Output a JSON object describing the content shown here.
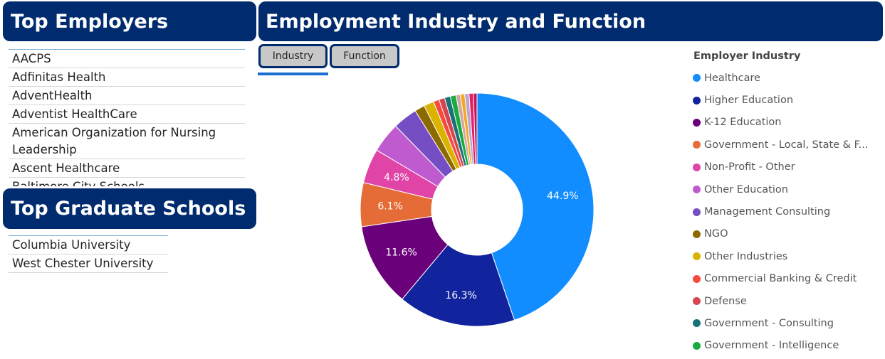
{
  "employers": {
    "title": "Top Employers",
    "items": [
      "AACPS",
      "Adfinitas Health",
      "AdventHealth",
      "Adventist HealthCare",
      "American Organization for Nursing Leadership",
      "Ascent Healthcare",
      "Baltimore City Schools"
    ]
  },
  "grad_schools": {
    "title": "Top Graduate Schools",
    "items": [
      "Columbia University",
      "West Chester University"
    ]
  },
  "industry": {
    "title": "Employment Industry and Function",
    "tabs": [
      {
        "label": "Industry",
        "active": true
      },
      {
        "label": "Function",
        "active": false
      }
    ]
  },
  "chart_data": {
    "type": "pie",
    "donut": true,
    "legend_title": "Employer Industry",
    "legend_position": "right",
    "slices": [
      {
        "label": "Healthcare",
        "value": 44.9,
        "color": "#118dff",
        "show_label": true
      },
      {
        "label": "Higher Education",
        "value": 16.3,
        "color": "#12239e",
        "show_label": true
      },
      {
        "label": "K-12 Education",
        "value": 11.6,
        "color": "#6b007b",
        "show_label": true
      },
      {
        "label": "Government - Local, State & Federal",
        "value": 6.1,
        "color": "#e66c37",
        "show_label": true
      },
      {
        "label": "Non-Profit - Other",
        "value": 4.8,
        "color": "#e044a7",
        "show_label": true
      },
      {
        "label": "Other Education",
        "value": 4.2,
        "color": "#c05bcf",
        "show_label": false
      },
      {
        "label": "Management Consulting",
        "value": 3.4,
        "color": "#744ec2",
        "show_label": false
      },
      {
        "label": "NGO",
        "value": 1.4,
        "color": "#8d6a00",
        "show_label": false
      },
      {
        "label": "Other Industries",
        "value": 1.4,
        "color": "#d9b300",
        "show_label": false
      },
      {
        "label": "Commercial Banking & Credit",
        "value": 0.8,
        "color": "#f64a3f",
        "show_label": false
      },
      {
        "label": "Defense",
        "value": 0.8,
        "color": "#d64550",
        "show_label": false
      },
      {
        "label": "Government - Consulting",
        "value": 0.8,
        "color": "#197278",
        "show_label": false
      },
      {
        "label": "Government - Intelligence",
        "value": 0.8,
        "color": "#1aab40",
        "show_label": false
      },
      {
        "label": "",
        "value": 0.6,
        "color": "#d4a5a5",
        "show_label": false
      },
      {
        "label": "",
        "value": 0.6,
        "color": "#f5a623",
        "show_label": false
      },
      {
        "label": "",
        "value": 0.6,
        "color": "#b4a7d6",
        "show_label": false
      },
      {
        "label": "",
        "value": 0.6,
        "color": "#e81e63",
        "show_label": false
      },
      {
        "label": "",
        "value": 0.5,
        "color": "#c2185b",
        "show_label": false
      }
    ],
    "legend_items": [
      "Healthcare",
      "Higher Education",
      "K-12 Education",
      "Government - Local, State & F...",
      "Non-Profit - Other",
      "Other Education",
      "Management Consulting",
      "NGO",
      "Other Industries",
      "Commercial Banking & Credit",
      "Defense",
      "Government - Consulting",
      "Government - Intelligence"
    ]
  }
}
